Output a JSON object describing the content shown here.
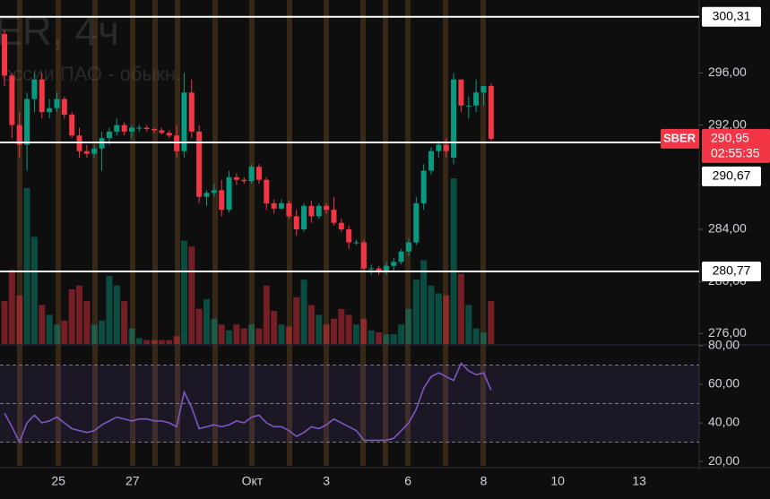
{
  "chart_data": {
    "type": "candlestick",
    "watermark_title": "ER, 4ч",
    "watermark_subtitle": "оссии ПАО - обыкн.",
    "symbol": "SBER",
    "up_color": "#089981",
    "down_color": "#f23645",
    "open": [
      299,
      295.8,
      292,
      290.5,
      294,
      295.5,
      293,
      293.3,
      294,
      292.8,
      291.2,
      290,
      289.8,
      290.2,
      291,
      291.5,
      292,
      291.5,
      291.8,
      291.8,
      291.7,
      291.6,
      291.4,
      291.2,
      290,
      294.5,
      291.5,
      286.5,
      286.8,
      287,
      285.5,
      288,
      287.8,
      287.7,
      288.8,
      287.8,
      286,
      285.6,
      286,
      285,
      284,
      285.8,
      285,
      285.8,
      285.5,
      284.5,
      284,
      283,
      283,
      281,
      281,
      280.8,
      281.2,
      281.5,
      282.3,
      283,
      286,
      288.5,
      290,
      290.5,
      289.5,
      295.5,
      293.5,
      293.5,
      294.5,
      295
    ],
    "high": [
      299.3,
      296,
      293,
      294.5,
      296,
      296,
      294,
      294.5,
      294.2,
      293,
      291.8,
      290.5,
      290.5,
      291.5,
      291.8,
      292.5,
      292.2,
      292,
      292,
      292,
      291.8,
      291.8,
      291.6,
      292,
      296,
      295.5,
      292,
      287,
      287.5,
      287.8,
      288.5,
      288.3,
      288,
      289,
      289,
      288,
      286.3,
      286.3,
      286.2,
      285.5,
      286,
      286.2,
      286,
      286,
      286.5,
      284.8,
      284.3,
      283.2,
      283.2,
      281.3,
      281.2,
      281.5,
      281.8,
      282.5,
      283.3,
      286.5,
      289,
      290.3,
      290.8,
      291,
      296,
      295.5,
      294.2,
      295.5,
      295,
      295.2
    ],
    "low": [
      295,
      291,
      289.5,
      288.5,
      293,
      292.5,
      292.5,
      293,
      292.5,
      291,
      289.5,
      289.5,
      289.5,
      288.5,
      290.5,
      291.2,
      291.2,
      291,
      291.5,
      291.5,
      291.4,
      291.3,
      291,
      289.5,
      289.5,
      291,
      286,
      285.8,
      286.5,
      285,
      285.3,
      287.4,
      287.5,
      287.5,
      287.5,
      285.5,
      285.2,
      285.5,
      284.8,
      283.5,
      283.8,
      284.5,
      284.8,
      285.2,
      284.3,
      283.8,
      282.5,
      282.8,
      280.8,
      280.5,
      280.5,
      280.5,
      280.8,
      281.3,
      282,
      282.8,
      285.5,
      288.2,
      289.5,
      289.5,
      289,
      293,
      292.5,
      293,
      293.5,
      290.8
    ],
    "close": [
      295.8,
      292,
      290.5,
      294,
      295.5,
      293,
      293.3,
      294,
      292.8,
      291.2,
      290,
      289.8,
      290.2,
      291,
      291.5,
      292,
      291.5,
      291.8,
      291.8,
      291.7,
      291.6,
      291.4,
      291.2,
      290,
      294.5,
      291.5,
      286.5,
      286.8,
      287,
      285.5,
      288,
      287.8,
      287.7,
      288.8,
      287.8,
      286,
      285.6,
      286,
      285,
      284,
      285.8,
      285,
      285.8,
      285.5,
      284.5,
      284,
      283,
      283,
      281,
      281,
      280.8,
      281.2,
      281.5,
      282.3,
      283,
      286,
      288.5,
      290,
      290.5,
      290,
      295.5,
      293.5,
      293.5,
      294.5,
      295,
      290.95
    ],
    "volume": [
      22,
      38,
      25,
      80,
      55,
      20,
      15,
      10,
      12,
      28,
      30,
      22,
      10,
      12,
      35,
      30,
      22,
      8,
      3,
      2,
      2,
      2,
      2,
      4,
      53,
      50,
      18,
      23,
      13,
      10,
      7,
      10,
      8,
      10,
      8,
      30,
      17,
      10,
      9,
      24,
      33,
      20,
      15,
      10,
      13,
      18,
      15,
      10,
      13,
      7,
      6,
      5,
      5,
      10,
      18,
      33,
      43,
      30,
      26,
      25,
      85,
      36,
      20,
      8,
      6,
      22
    ],
    "xlim": [
      -0.6,
      92.8
    ],
    "xticks": [
      {
        "value": 7.2,
        "label": "25"
      },
      {
        "value": 17.1,
        "label": "27"
      },
      {
        "value": 33.1,
        "label": "Окт"
      },
      {
        "value": 43,
        "label": "3"
      },
      {
        "value": 53.9,
        "label": "6"
      },
      {
        "value": 64,
        "label": "8"
      },
      {
        "value": 73.9,
        "label": "10"
      },
      {
        "value": 84.8,
        "label": "13"
      }
    ],
    "ylim": [
      275.2,
      301.6
    ],
    "yticks": [
      {
        "value": 276,
        "label": "276,00"
      },
      {
        "value": 280,
        "label": "280,00"
      },
      {
        "value": 284,
        "label": "284,00"
      },
      {
        "value": 292,
        "label": "292,00"
      },
      {
        "value": 296,
        "label": "296,00"
      }
    ],
    "levels": [
      {
        "value": 300.31,
        "label": "300,31"
      },
      {
        "value": 290.67,
        "label": "290,67"
      },
      {
        "value": 280.77,
        "label": "280,77"
      }
    ],
    "last_price": {
      "value": 290.95,
      "label": "290,95"
    },
    "countdown": "02:55:35",
    "rsi": {
      "color": "#7e57c2",
      "values": [
        45,
        38,
        30,
        40,
        44,
        40,
        41,
        43,
        40,
        37,
        36,
        35,
        36,
        39,
        41,
        43,
        42,
        41,
        42,
        42,
        41,
        41,
        40,
        38,
        56,
        48,
        37,
        38,
        39,
        38,
        39,
        41,
        40,
        43,
        44,
        40,
        38,
        38,
        36,
        33,
        35,
        38,
        37,
        39,
        42,
        40,
        38,
        36,
        31,
        31,
        31,
        31,
        32,
        36,
        40,
        47,
        58,
        64,
        66,
        64,
        62,
        71,
        67,
        65,
        66,
        57
      ],
      "ylim": [
        17.7,
        80
      ],
      "yticks": [
        {
          "value": 20,
          "label": "20,00"
        },
        {
          "value": 40,
          "label": "40,00"
        },
        {
          "value": 60,
          "label": "60,00"
        },
        {
          "value": 80,
          "label": "80,00"
        }
      ],
      "bands": [
        30,
        50,
        70
      ]
    }
  }
}
